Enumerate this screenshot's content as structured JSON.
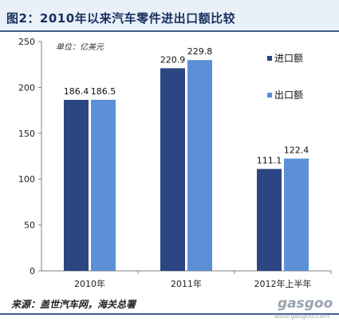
{
  "chart_data": {
    "type": "bar",
    "title": "图2：2010年以来汽车零件进出口额比较",
    "unit_note": "单位：亿美元",
    "categories": [
      "2010年",
      "2011年",
      "2012年上半年"
    ],
    "series": [
      {
        "name": "进口额",
        "values": [
          186.4,
          220.9,
          111.1
        ],
        "color": "#2b4682"
      },
      {
        "name": "出口额",
        "values": [
          186.5,
          229.8,
          122.4
        ],
        "color": "#5b8fd6"
      }
    ],
    "ylim": [
      0,
      250
    ],
    "yticks": [
      0,
      50,
      100,
      150,
      200,
      250
    ],
    "value_labels": [
      [
        "186.4",
        "220.9",
        "111.1"
      ],
      [
        "186.5",
        "229.8",
        "122.4"
      ]
    ],
    "legend_position": "right",
    "grid": false
  },
  "source": "来源：盖世汽车网，海关总署",
  "watermark": {
    "logo": "gasgoo",
    "url": "auto.gasgoo.com"
  }
}
